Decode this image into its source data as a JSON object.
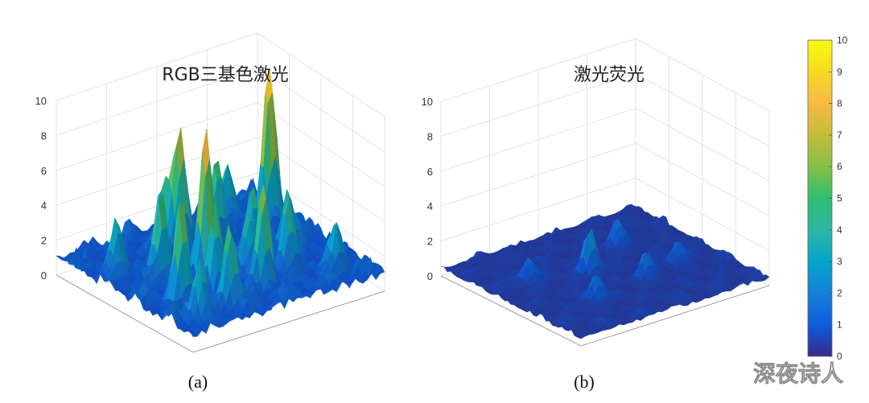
{
  "chart_data": [
    {
      "type": "surface",
      "title": "RGB三基色激光",
      "caption": "(a)",
      "zlim": [
        0,
        10
      ],
      "zticks": [
        "0",
        "2",
        "4",
        "6",
        "8",
        "10"
      ],
      "peaks": [
        {
          "u": 0.12,
          "v": 0.28,
          "z": 9.0
        },
        {
          "u": 0.55,
          "v": 0.25,
          "z": 7.0
        },
        {
          "u": 0.62,
          "v": 0.55,
          "z": 8.5
        },
        {
          "u": 0.78,
          "v": 0.45,
          "z": 5.2
        },
        {
          "u": 0.85,
          "v": 0.7,
          "z": 5.5
        },
        {
          "u": 0.35,
          "v": 0.5,
          "z": 4.0
        },
        {
          "u": 0.48,
          "v": 0.78,
          "z": 6.0
        },
        {
          "u": 0.7,
          "v": 0.85,
          "z": 4.5
        },
        {
          "u": 0.25,
          "v": 0.15,
          "z": 3.2
        },
        {
          "u": 0.4,
          "v": 0.3,
          "z": 4.8
        },
        {
          "u": 0.6,
          "v": 0.2,
          "z": 3.5
        },
        {
          "u": 0.3,
          "v": 0.7,
          "z": 3.8
        },
        {
          "u": 0.9,
          "v": 0.3,
          "z": 3.0
        },
        {
          "u": 0.2,
          "v": 0.55,
          "z": 3.4
        },
        {
          "u": 0.66,
          "v": 0.68,
          "z": 4.2
        },
        {
          "u": 0.45,
          "v": 0.62,
          "z": 3.6
        },
        {
          "u": 0.88,
          "v": 0.88,
          "z": 3.1
        },
        {
          "u": 0.15,
          "v": 0.85,
          "z": 2.8
        }
      ],
      "baseline": 0.8,
      "noise": 1.4
    },
    {
      "type": "surface",
      "title": "激光荧光",
      "caption": "(b)",
      "zlim": [
        0,
        10
      ],
      "zticks": [
        "0",
        "2",
        "4",
        "6",
        "8",
        "10"
      ],
      "peaks": [
        {
          "u": 0.55,
          "v": 0.45,
          "z": 2.6
        },
        {
          "u": 0.3,
          "v": 0.3,
          "z": 1.6
        },
        {
          "u": 0.7,
          "v": 0.7,
          "z": 1.5
        },
        {
          "u": 0.4,
          "v": 0.65,
          "z": 1.4
        },
        {
          "u": 0.2,
          "v": 0.6,
          "z": 1.2
        },
        {
          "u": 0.8,
          "v": 0.35,
          "z": 1.3
        }
      ],
      "baseline": 0.35,
      "noise": 0.5
    }
  ],
  "colorbar": {
    "range": [
      0,
      10
    ],
    "ticks": [
      "0",
      "1",
      "2",
      "3",
      "4",
      "5",
      "6",
      "7",
      "8",
      "9",
      "10"
    ]
  },
  "watermark": "深夜诗人"
}
